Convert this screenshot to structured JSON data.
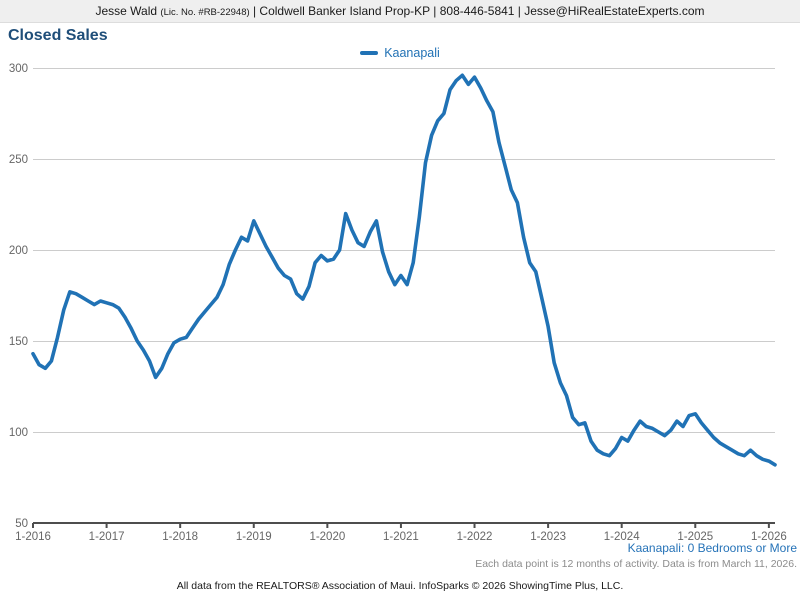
{
  "header": {
    "name": "Jesse Wald ",
    "license": "(Lic. No. #RB-22948)",
    "contact": " | Coldwell Banker Island Prop-KP | 808-446-5841 | Jesse@HiRealEstateExperts.com"
  },
  "title": "Closed Sales",
  "legend": {
    "label": "Kaanapali"
  },
  "footer": {
    "series_note": "Kaanapali: 0 Bedrooms or More",
    "data_note": "Each data point is 12 months of activity. Data is from March 11, 2026.",
    "attribution": "All data from the REALTORS® Association of Maui. InfoSparks © 2026 ShowingTime Plus, LLC."
  },
  "colors": {
    "line": "#2072b5",
    "grid": "#cccccc",
    "axis": "#4d4d4d",
    "tick_label": "#666666",
    "title": "#1f4e79",
    "legend_text": "#2272b5"
  },
  "chart_data": {
    "type": "line",
    "title": "Closed Sales",
    "x_start": "2016-01",
    "x_end": "2026-02",
    "x_interval": "monthly",
    "points": 122,
    "x_tick_labels": [
      "1-2016",
      "1-2017",
      "1-2018",
      "1-2019",
      "1-2020",
      "1-2021",
      "1-2022",
      "1-2023",
      "1-2024",
      "1-2025",
      "1-2026"
    ],
    "y_ticks": [
      50,
      100,
      150,
      200,
      250,
      300
    ],
    "ylim": [
      50,
      300
    ],
    "grid": "horizontal",
    "legend_position": "top-center",
    "series": [
      {
        "name": "Kaanapali",
        "color": "#2072b5",
        "values": [
          143,
          137,
          135,
          139,
          152,
          167,
          177,
          176,
          174,
          172,
          170,
          172,
          171,
          170,
          168,
          163,
          157,
          150,
          145,
          139,
          130,
          135,
          143,
          149,
          151,
          152,
          157,
          162,
          166,
          170,
          174,
          181,
          192,
          200,
          207,
          205,
          216,
          209,
          202,
          196,
          190,
          186,
          184,
          176,
          173,
          180,
          193,
          197,
          194,
          195,
          200,
          220,
          211,
          204,
          202,
          210,
          216,
          199,
          188,
          181,
          186,
          181,
          193,
          218,
          248,
          263,
          271,
          275,
          288,
          293,
          296,
          291,
          295,
          289,
          282,
          276,
          259,
          246,
          233,
          226,
          207,
          193,
          188,
          173,
          158,
          138,
          127,
          120,
          108,
          104,
          105,
          95,
          90,
          88,
          87,
          91,
          97,
          95,
          101,
          106,
          103,
          102,
          100,
          98,
          101,
          106,
          103,
          109,
          110,
          105,
          101,
          97,
          94,
          92,
          90,
          88,
          87,
          90,
          87,
          85,
          84,
          82
        ]
      }
    ]
  }
}
